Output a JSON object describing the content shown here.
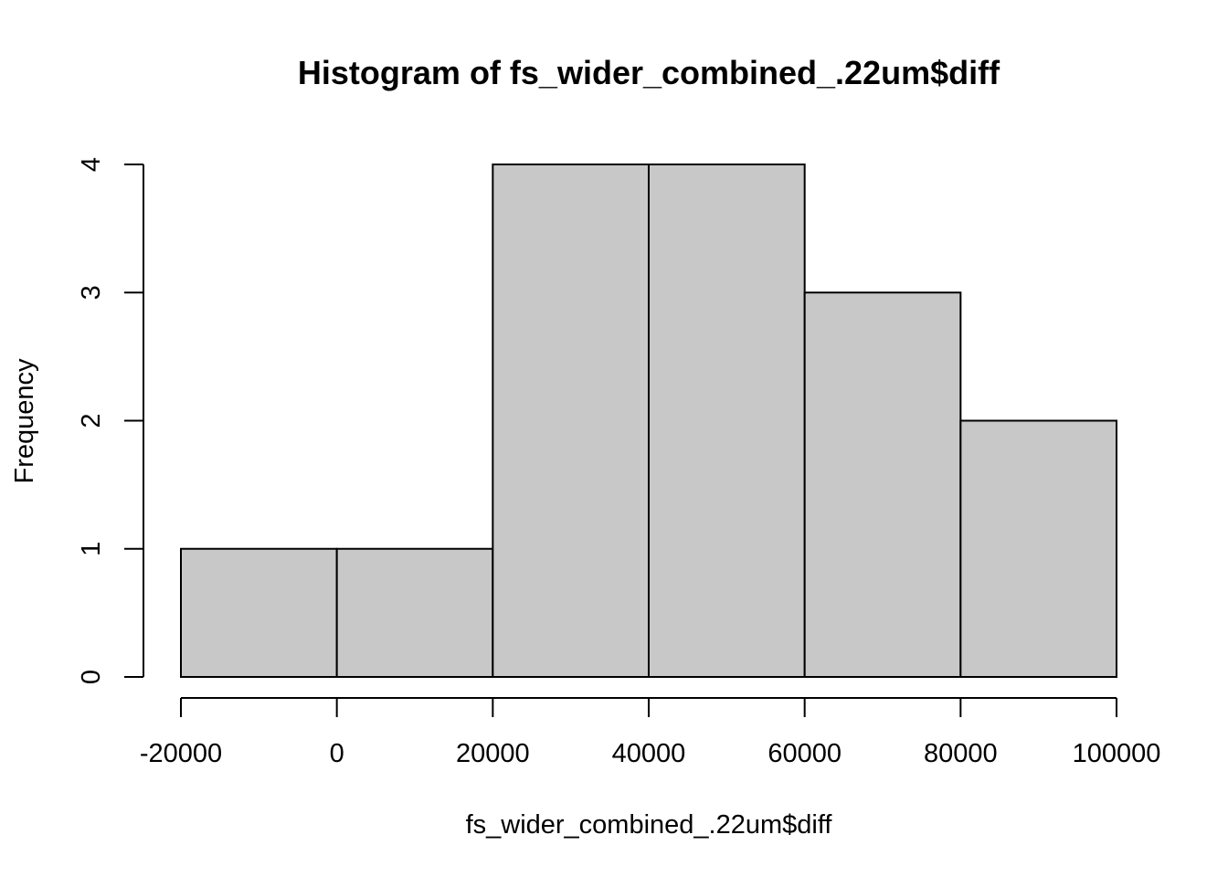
{
  "chart_data": {
    "type": "bar",
    "subtype": "histogram",
    "title": "Histogram of fs_wider_combined_.22um$diff",
    "xlabel": "fs_wider_combined_.22um$diff",
    "ylabel": "Frequency",
    "bins": [
      {
        "from": -20000,
        "to": 0,
        "count": 1
      },
      {
        "from": 0,
        "to": 20000,
        "count": 1
      },
      {
        "from": 20000,
        "to": 40000,
        "count": 4
      },
      {
        "from": 40000,
        "to": 60000,
        "count": 4
      },
      {
        "from": 60000,
        "to": 80000,
        "count": 3
      },
      {
        "from": 80000,
        "to": 100000,
        "count": 2
      }
    ],
    "xlim": [
      -20000,
      100000
    ],
    "ylim": [
      0,
      4
    ],
    "x_ticks": [
      "-20000",
      "0",
      "20000",
      "40000",
      "60000",
      "80000",
      "100000"
    ],
    "y_ticks": [
      "0",
      "1",
      "2",
      "3",
      "4"
    ],
    "bar_color": "#c8c8c8",
    "grid": false,
    "legend": "none"
  }
}
